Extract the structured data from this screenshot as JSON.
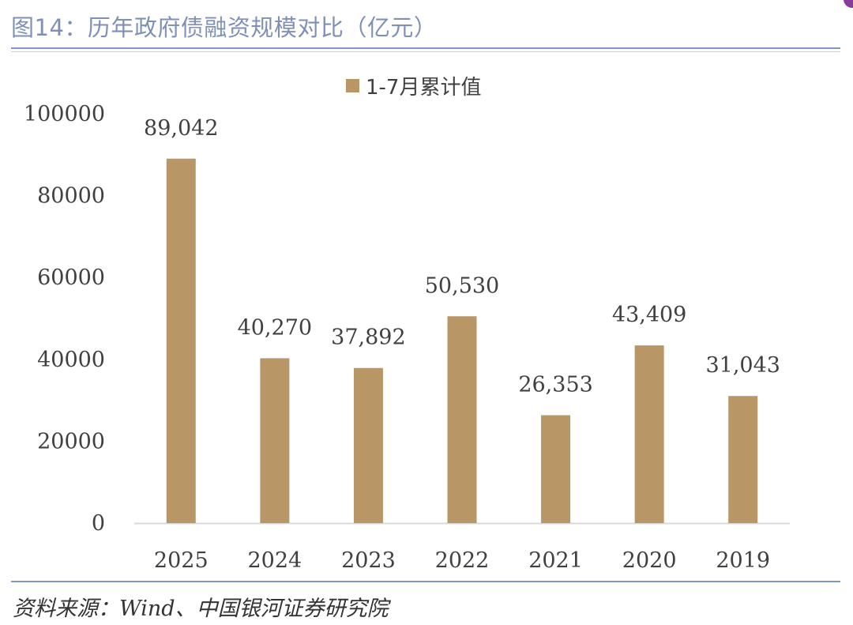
{
  "header": {
    "title": "图14：历年政府债融资规模对比（亿元）"
  },
  "footer": {
    "source": "资料来源：Wind、中国银河证券研究院"
  },
  "colors": {
    "bar": "#b89665",
    "axis": "#d9d9d9",
    "text": "#404040",
    "accent": "#8096c4"
  },
  "chart_data": {
    "type": "bar",
    "title": "",
    "xlabel": "",
    "ylabel": "",
    "categories": [
      "2025",
      "2024",
      "2023",
      "2022",
      "2021",
      "2020",
      "2019"
    ],
    "series": [
      {
        "name": "1-7月累计值",
        "values": [
          89042,
          40270,
          37892,
          50530,
          26353,
          43409,
          31043
        ],
        "labels": [
          "89,042",
          "40,270",
          "37,892",
          "50,530",
          "26,353",
          "43,409",
          "31,043"
        ]
      }
    ],
    "ylim": [
      0,
      100000
    ],
    "yticks": [
      "0",
      "20000",
      "40000",
      "60000",
      "80000",
      "100000"
    ],
    "legend": "top-center",
    "grid": false
  }
}
